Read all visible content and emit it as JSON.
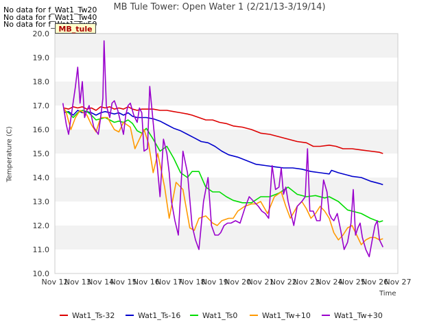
{
  "nodata_messages": [
    "No data for f_Wat1_Tw20",
    "No data for f_Wat1_Tw40",
    "No data for f_Wat1_Tw50"
  ],
  "badge": "MB_tule",
  "chart_data": {
    "type": "line",
    "title": "MB Tule Tower: Open Water 1 (2/21/13-3/19/14)",
    "xlabel": "Time",
    "ylabel": "Temperature (C)",
    "x_ticks": [
      "Nov 12",
      "Nov 13",
      "Nov 14",
      "Nov 15",
      "Nov 16",
      "Nov 17",
      "Nov 18",
      "Nov 19",
      "Nov 20",
      "Nov 21",
      "Nov 22",
      "Nov 23",
      "Nov 24",
      "Nov 25",
      "Nov 26",
      "Nov 27"
    ],
    "y_ticks": [
      "10.0",
      "11.0",
      "12.0",
      "13.0",
      "14.0",
      "15.0",
      "16.0",
      "17.0",
      "18.0",
      "19.0",
      "20.0"
    ],
    "xlim": [
      12,
      27
    ],
    "ylim": [
      10.0,
      20.0
    ],
    "x_unit": "day of November",
    "grid": "horizontal bands",
    "legend_position": "bottom",
    "series": [
      {
        "name": "Wat1_Ts-32",
        "color": "#dd0000",
        "x": [
          12.4,
          12.6,
          12.8,
          13.0,
          13.2,
          13.4,
          13.6,
          13.8,
          14.0,
          14.2,
          14.4,
          14.6,
          14.8,
          15.0,
          15.2,
          15.4,
          15.6,
          15.8,
          16.0,
          16.3,
          16.6,
          16.9,
          17.2,
          17.5,
          17.8,
          18.0,
          18.3,
          18.6,
          18.9,
          19.2,
          19.5,
          19.8,
          20.2,
          20.6,
          21.0,
          21.4,
          21.8,
          22.2,
          22.6,
          23.0,
          23.3,
          23.6,
          24.0,
          24.3,
          24.6,
          25.0,
          25.4,
          25.8,
          26.2,
          26.35
        ],
        "y": [
          16.9,
          16.85,
          16.95,
          16.9,
          16.95,
          16.85,
          16.9,
          16.8,
          16.95,
          16.9,
          16.95,
          16.85,
          16.9,
          16.85,
          16.95,
          16.85,
          16.8,
          16.85,
          16.85,
          16.85,
          16.8,
          16.8,
          16.75,
          16.7,
          16.65,
          16.6,
          16.5,
          16.4,
          16.4,
          16.3,
          16.25,
          16.15,
          16.1,
          16.0,
          15.85,
          15.8,
          15.7,
          15.6,
          15.5,
          15.45,
          15.3,
          15.3,
          15.35,
          15.3,
          15.2,
          15.2,
          15.15,
          15.1,
          15.05,
          15.0
        ]
      },
      {
        "name": "Wat1_Ts-16",
        "color": "#0000cc",
        "x": [
          12.4,
          12.6,
          12.8,
          13.0,
          13.2,
          13.4,
          13.6,
          13.8,
          14.0,
          14.2,
          14.4,
          14.6,
          14.8,
          15.0,
          15.2,
          15.4,
          15.6,
          15.8,
          16.0,
          16.3,
          16.6,
          16.9,
          17.2,
          17.5,
          17.8,
          18.1,
          18.4,
          18.7,
          19.0,
          19.3,
          19.6,
          20.0,
          20.4,
          20.8,
          21.2,
          21.6,
          22.0,
          22.4,
          22.8,
          23.2,
          23.6,
          24.0,
          24.1,
          24.4,
          24.8,
          25.0,
          25.4,
          25.8,
          26.2,
          26.35
        ],
        "y": [
          16.7,
          16.75,
          16.6,
          16.8,
          16.7,
          16.75,
          16.7,
          16.6,
          16.7,
          16.75,
          16.7,
          16.65,
          16.7,
          16.6,
          16.7,
          16.55,
          16.5,
          16.5,
          16.5,
          16.45,
          16.35,
          16.2,
          16.05,
          15.95,
          15.8,
          15.65,
          15.5,
          15.45,
          15.3,
          15.1,
          14.95,
          14.85,
          14.7,
          14.55,
          14.5,
          14.45,
          14.4,
          14.4,
          14.35,
          14.25,
          14.2,
          14.15,
          14.3,
          14.2,
          14.1,
          14.05,
          14.0,
          13.85,
          13.75,
          13.7
        ]
      },
      {
        "name": "Wat1_Ts0",
        "color": "#00dd00",
        "x": [
          12.4,
          12.6,
          12.8,
          13.0,
          13.2,
          13.4,
          13.6,
          13.8,
          14.0,
          14.2,
          14.4,
          14.6,
          14.8,
          15.0,
          15.2,
          15.4,
          15.6,
          15.8,
          16.0,
          16.3,
          16.6,
          16.9,
          17.2,
          17.5,
          17.8,
          18.0,
          18.3,
          18.6,
          18.9,
          19.2,
          19.5,
          19.8,
          20.2,
          20.6,
          21.0,
          21.4,
          21.8,
          22.2,
          22.6,
          23.0,
          23.4,
          23.8,
          24.0,
          24.4,
          24.8,
          25.0,
          25.4,
          25.8,
          26.2,
          26.35
        ],
        "y": [
          16.8,
          16.7,
          16.5,
          16.7,
          16.8,
          16.75,
          16.6,
          16.4,
          16.45,
          16.5,
          16.4,
          16.3,
          16.35,
          16.3,
          16.4,
          16.25,
          15.95,
          15.85,
          16.05,
          15.6,
          15.1,
          15.3,
          14.8,
          14.2,
          14.0,
          14.25,
          14.25,
          13.6,
          13.4,
          13.4,
          13.2,
          13.05,
          12.95,
          12.95,
          13.2,
          13.2,
          13.35,
          13.6,
          13.3,
          13.2,
          13.25,
          13.15,
          13.2,
          13.0,
          12.65,
          12.6,
          12.5,
          12.3,
          12.15,
          12.2
        ]
      },
      {
        "name": "Wat1_Tw+10",
        "color": "#ff9900",
        "x": [
          12.4,
          12.5,
          12.7,
          12.9,
          13.1,
          13.4,
          13.6,
          13.8,
          14.0,
          14.3,
          14.6,
          14.8,
          15.0,
          15.3,
          15.5,
          15.7,
          15.9,
          16.1,
          16.3,
          16.5,
          16.8,
          17.0,
          17.3,
          17.6,
          17.9,
          18.1,
          18.3,
          18.6,
          18.9,
          19.1,
          19.3,
          19.6,
          19.8,
          20.0,
          20.3,
          20.6,
          20.8,
          21.0,
          21.3,
          21.6,
          21.9,
          22.1,
          22.3,
          22.6,
          22.8,
          23.0,
          23.2,
          23.4,
          23.6,
          23.8,
          24.0,
          24.2,
          24.4,
          24.6,
          24.8,
          25.0,
          25.2,
          25.4,
          25.6,
          25.8,
          26.0,
          26.2,
          26.35
        ],
        "y": [
          16.9,
          16.7,
          16.0,
          16.5,
          16.8,
          16.6,
          16.2,
          15.9,
          16.5,
          16.5,
          16.0,
          15.9,
          16.3,
          16.1,
          15.2,
          15.6,
          16.0,
          15.4,
          14.2,
          15.0,
          13.6,
          12.3,
          13.8,
          13.5,
          11.9,
          11.8,
          12.3,
          12.4,
          12.1,
          12.0,
          12.2,
          12.3,
          12.3,
          12.6,
          12.8,
          12.9,
          12.9,
          13.0,
          12.5,
          13.2,
          13.4,
          12.8,
          12.3,
          12.8,
          13.0,
          12.7,
          12.3,
          12.5,
          12.8,
          12.6,
          12.3,
          11.7,
          11.4,
          11.6,
          11.9,
          12.0,
          11.6,
          11.2,
          11.4,
          11.5,
          11.5,
          11.4,
          11.45
        ]
      },
      {
        "name": "Wat1_Tw+30",
        "color": "#9900cc",
        "x": [
          12.35,
          12.5,
          12.6,
          12.75,
          12.9,
          13.0,
          13.1,
          13.2,
          13.3,
          13.4,
          13.5,
          13.7,
          13.9,
          14.0,
          14.1,
          14.15,
          14.25,
          14.4,
          14.5,
          14.6,
          14.75,
          14.9,
          15.0,
          15.1,
          15.2,
          15.3,
          15.45,
          15.6,
          15.7,
          15.8,
          15.9,
          16.05,
          16.15,
          16.3,
          16.45,
          16.6,
          16.75,
          16.9,
          17.0,
          17.1,
          17.25,
          17.4,
          17.6,
          17.8,
          18.0,
          18.15,
          18.3,
          18.5,
          18.7,
          18.85,
          19.0,
          19.15,
          19.25,
          19.4,
          19.55,
          19.7,
          19.9,
          20.1,
          20.3,
          20.5,
          20.7,
          20.9,
          21.05,
          21.2,
          21.35,
          21.5,
          21.65,
          21.8,
          21.9,
          22.0,
          22.1,
          22.2,
          22.3,
          22.45,
          22.6,
          22.8,
          22.95,
          23.05,
          23.15,
          23.3,
          23.45,
          23.6,
          23.75,
          23.9,
          24.0,
          24.1,
          24.2,
          24.35,
          24.5,
          24.65,
          24.8,
          24.95,
          25.05,
          25.15,
          25.25,
          25.35,
          25.45,
          25.6,
          25.75,
          25.9,
          26.0,
          26.1,
          26.2,
          26.35
        ],
        "y": [
          17.1,
          16.2,
          15.8,
          16.8,
          17.8,
          18.6,
          17.1,
          18.0,
          16.5,
          16.8,
          17.0,
          16.1,
          15.8,
          16.5,
          17.3,
          19.7,
          17.0,
          16.5,
          17.1,
          17.2,
          16.8,
          16.2,
          15.8,
          16.6,
          17.0,
          17.1,
          16.6,
          16.3,
          16.9,
          16.7,
          15.1,
          15.2,
          17.8,
          16.3,
          14.8,
          13.2,
          15.6,
          15.0,
          14.2,
          13.0,
          12.2,
          11.6,
          15.1,
          14.2,
          12.0,
          11.4,
          11.0,
          13.0,
          14.0,
          12.0,
          11.6,
          11.6,
          11.7,
          12.0,
          12.1,
          12.1,
          12.2,
          12.1,
          12.7,
          13.2,
          13.0,
          12.8,
          12.6,
          12.5,
          12.3,
          14.5,
          13.5,
          13.6,
          14.4,
          13.3,
          13.6,
          13.0,
          12.6,
          12.0,
          12.8,
          13.0,
          13.2,
          15.2,
          12.6,
          12.6,
          12.2,
          12.2,
          13.9,
          13.4,
          12.5,
          12.3,
          12.2,
          12.5,
          11.8,
          11.0,
          11.3,
          12.1,
          13.5,
          11.6,
          11.9,
          12.1,
          11.5,
          11.0,
          10.7,
          11.5,
          12.0,
          12.2,
          11.4,
          11.1
        ]
      }
    ]
  }
}
